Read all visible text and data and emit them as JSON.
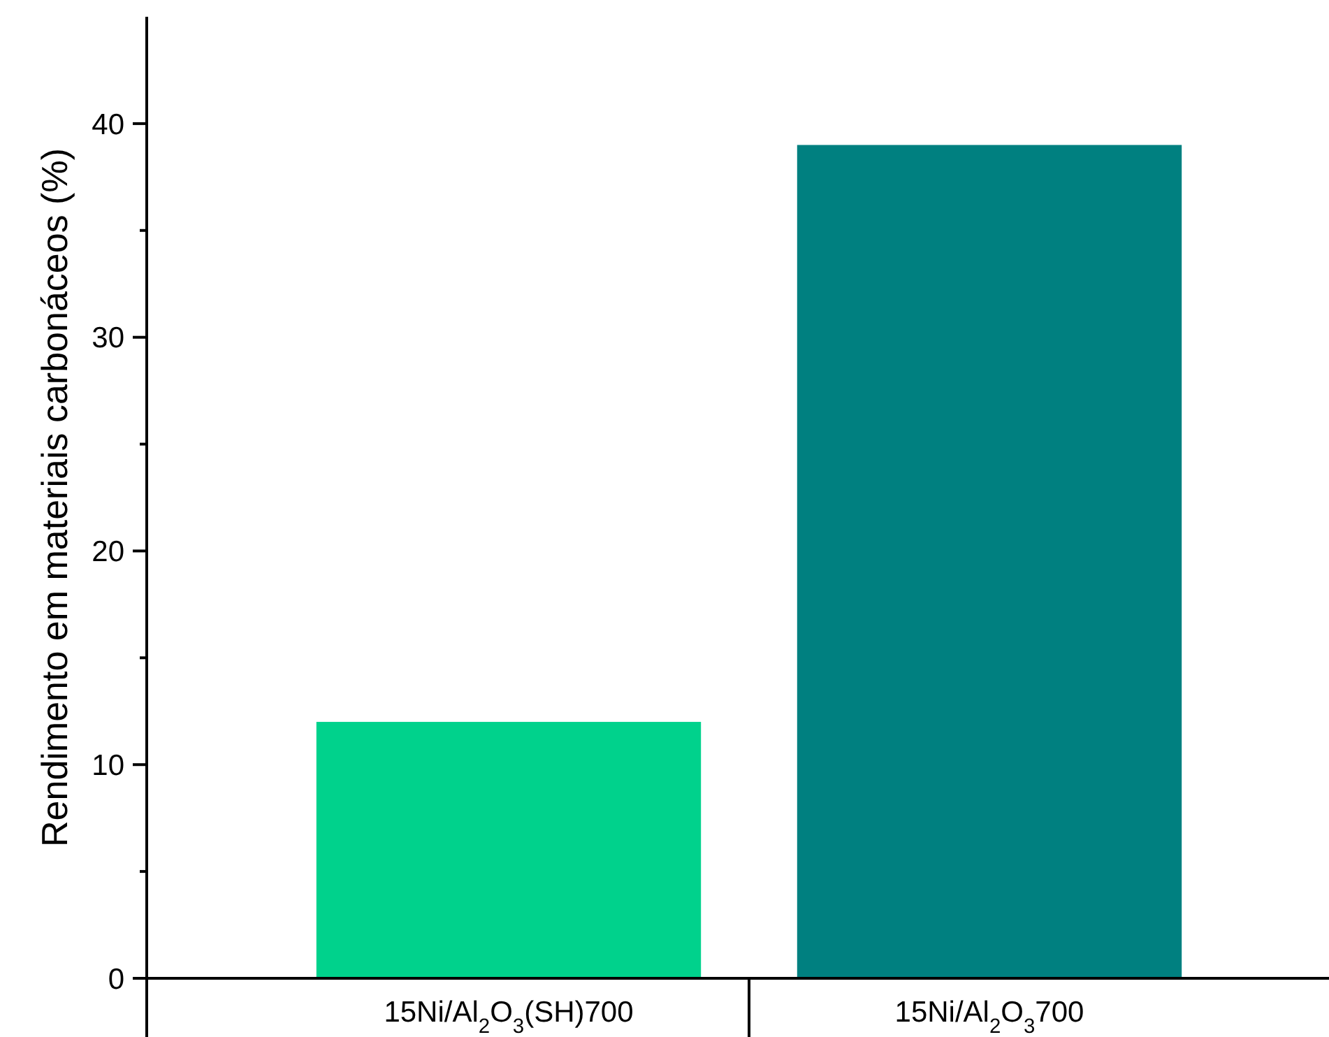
{
  "chart_data": {
    "type": "bar",
    "ylabel": "Rendimento em materiais carbonáceos (%)",
    "categories": [
      "15Ni/Al$_{2}$O$_{3}$(SH)700",
      "15Ni/Al$_{2}$O$_{3}$700"
    ],
    "values": [
      12,
      39
    ],
    "colors": [
      "#00d28c",
      "#008080"
    ],
    "ylim": [
      0,
      45
    ],
    "yticks": [
      0,
      {
        "value": 5,
        "label": null
      },
      10,
      {
        "value": 15,
        "label": null
      },
      20,
      {
        "value": 25,
        "label": null
      },
      30,
      {
        "value": 35,
        "label": null
      },
      40
    ],
    "grid": false
  }
}
